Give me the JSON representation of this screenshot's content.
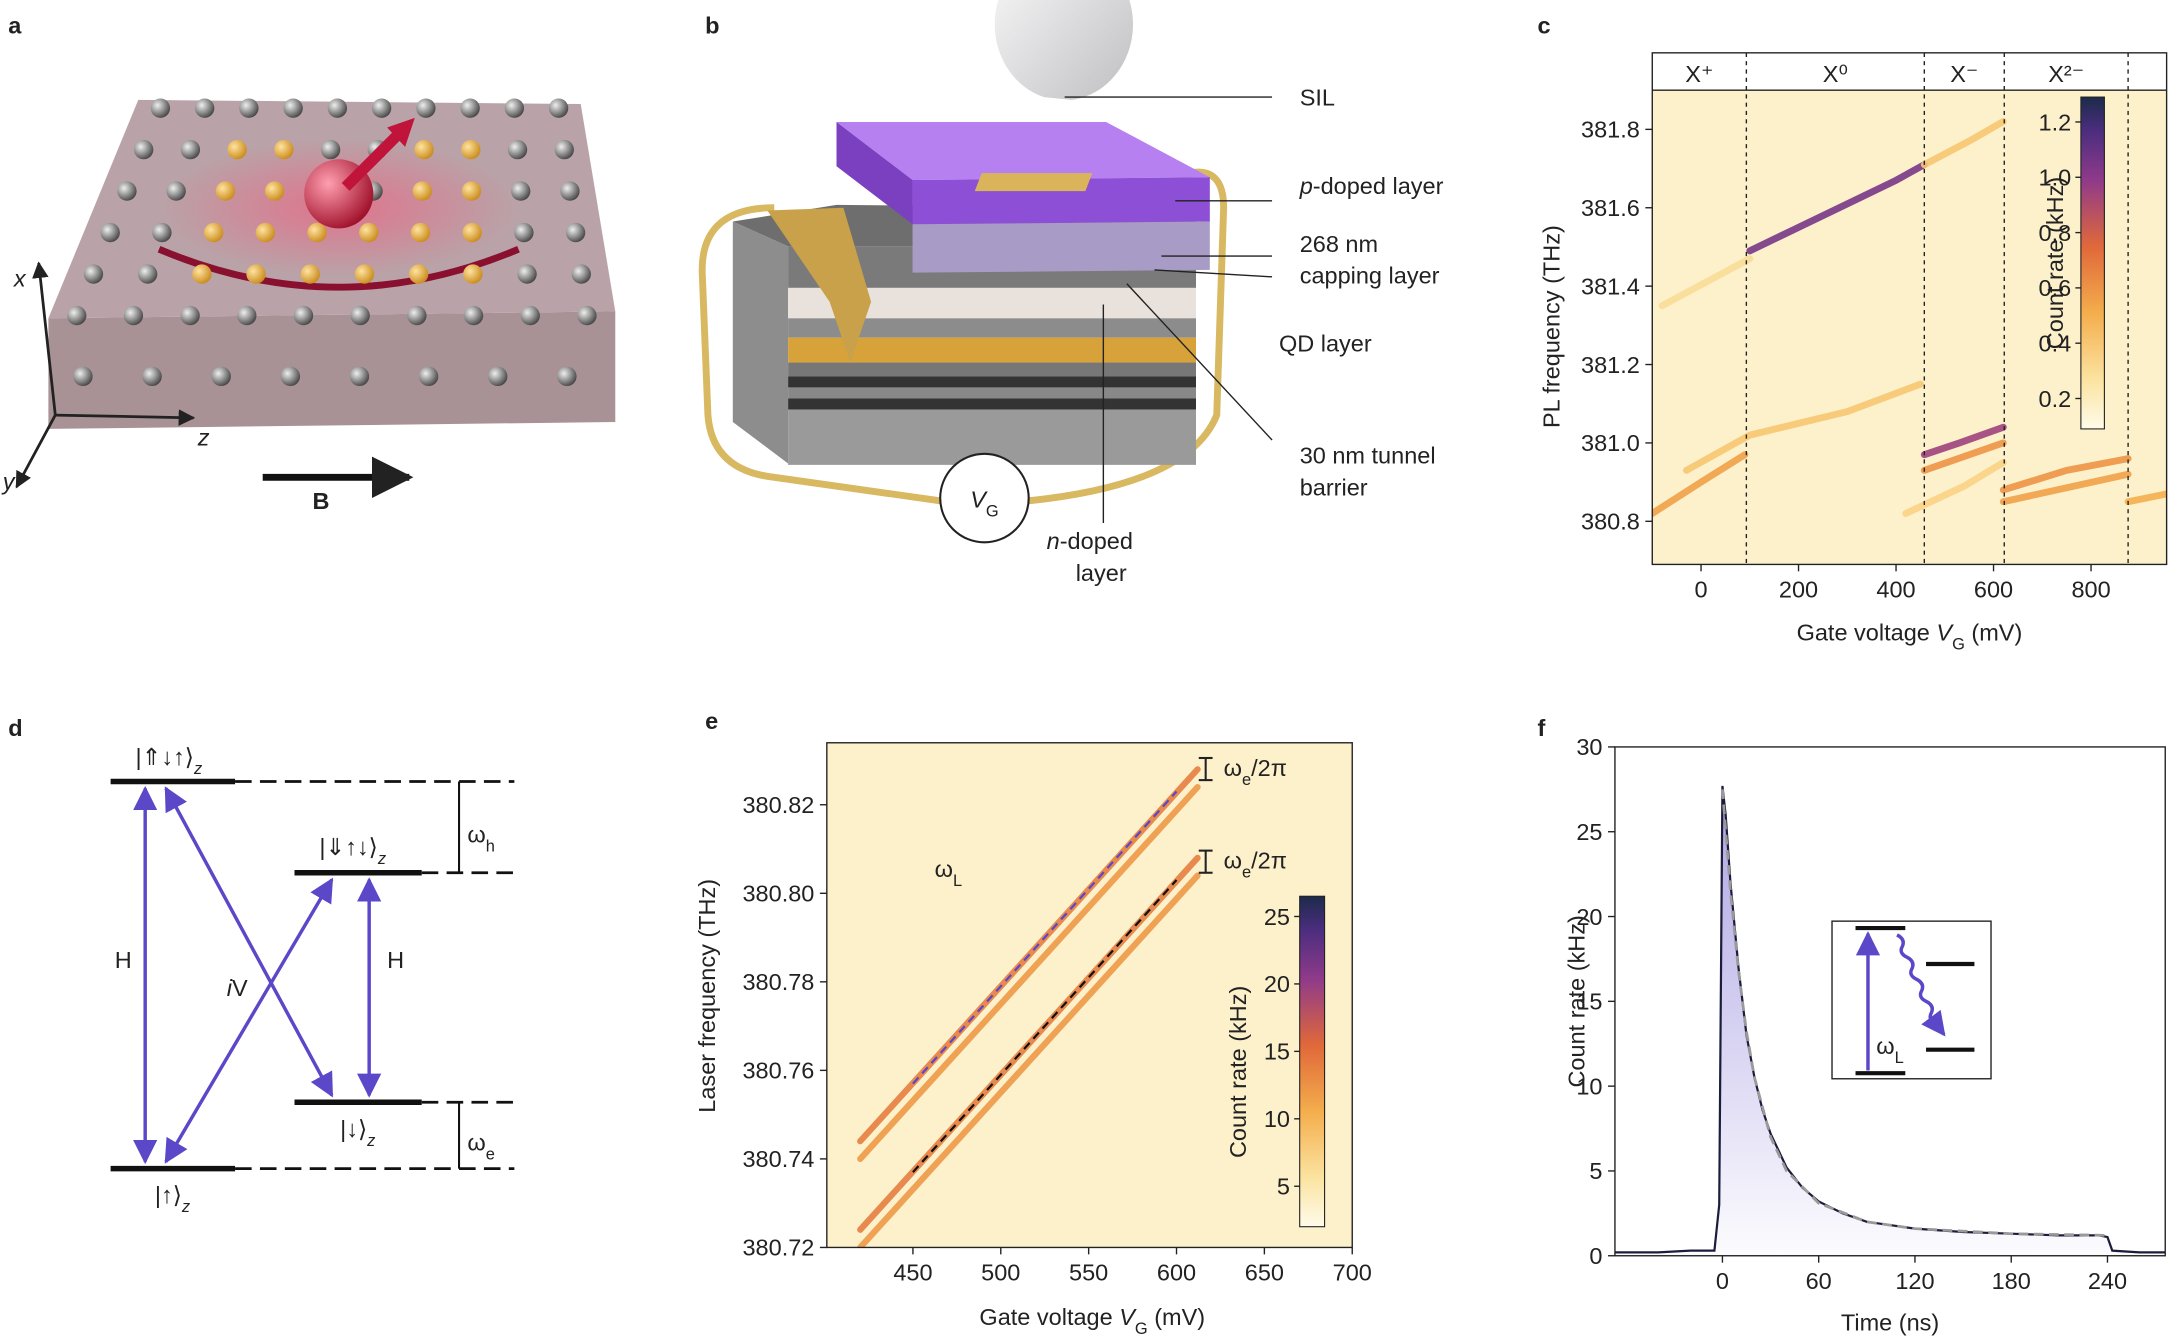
{
  "panel_labels": [
    "a",
    "b",
    "c",
    "d",
    "e",
    "f"
  ],
  "panel_a": {
    "axes": [
      "x",
      "z",
      "y"
    ],
    "field": "B"
  },
  "panel_b": {
    "labels": [
      "SIL",
      [
        "p",
        "-doped layer"
      ],
      "268 nm",
      "capping layer",
      "QD layer",
      "30 nm tunnel",
      "barrier",
      [
        "n",
        "-doped"
      ],
      "layer"
    ],
    "gate": [
      "V",
      "G"
    ]
  },
  "panel_d": {
    "states": [
      [
        "|⇑↓↑⟩",
        "z"
      ],
      [
        "|⇓↑↓⟩",
        "z"
      ],
      [
        "|↓⟩",
        "z"
      ],
      [
        "|↑⟩",
        "z"
      ]
    ],
    "transitions": [
      "H",
      [
        "i",
        "V"
      ],
      "H"
    ],
    "splittings": [
      [
        "ω",
        "h"
      ],
      [
        "ω",
        "e"
      ]
    ]
  },
  "chart_data": [
    {
      "type": "heatmap",
      "x_label": [
        "Gate voltage ",
        "V",
        "G",
        " (mV)"
      ],
      "y_label": "PL frequency (THz)",
      "xlim": [
        -100,
        955
      ],
      "ylim": [
        380.69,
        381.9
      ],
      "xticks": [
        0,
        200,
        400,
        600,
        800
      ],
      "yticks": [
        380.8,
        {
          "value": 381,
          "label": "381.0"
        },
        381.2,
        381.4,
        381.6,
        381.8
      ],
      "regions": [
        {
          "label": "X⁺",
          "start": -100,
          "end": 93
        },
        {
          "label": "X⁰",
          "start": 93,
          "end": 458
        },
        {
          "label": "X⁻",
          "start": 458,
          "end": 622
        },
        {
          "label": "X²⁻",
          "start": 622,
          "end": 876
        }
      ],
      "colorbar": {
        "label": "Count rate (kHz)",
        "clim": [
          0.09,
          1.29
        ],
        "ticks": [
          0.2,
          0.4,
          0.6,
          0.8,
          {
            "value": 1,
            "label": "1.0"
          },
          1.2
        ]
      },
      "series": [
        {
          "x": [
            -100,
            0,
            90
          ],
          "values": [
            380.82,
            380.9,
            380.97
          ],
          "intensity": 0.55
        },
        {
          "x": [
            -30,
            100,
            300,
            450
          ],
          "values": [
            380.93,
            381.02,
            381.08,
            381.15
          ],
          "intensity": 0.4
        },
        {
          "x": [
            -80,
            100
          ],
          "values": [
            381.35,
            381.47
          ],
          "intensity": 0.3
        },
        {
          "x": [
            100,
            200,
            300,
            400,
            458
          ],
          "values": [
            381.49,
            381.55,
            381.61,
            381.67,
            381.71
          ],
          "intensity": 1.05
        },
        {
          "x": [
            458,
            550,
            620
          ],
          "values": [
            381.71,
            381.77,
            381.82
          ],
          "intensity": 0.4
        },
        {
          "x": [
            420,
            540,
            620
          ],
          "values": [
            380.82,
            380.89,
            380.95
          ],
          "intensity": 0.35
        },
        {
          "x": [
            458,
            620
          ],
          "values": [
            380.93,
            381.0
          ],
          "intensity": 0.6
        },
        {
          "x": [
            458,
            530,
            620
          ],
          "values": [
            380.97,
            381.0,
            381.04
          ],
          "intensity": 0.95
        },
        {
          "x": [
            620,
            750,
            876
          ],
          "values": [
            380.88,
            380.93,
            380.96
          ],
          "intensity": 0.6
        },
        {
          "x": [
            620,
            876
          ],
          "values": [
            380.85,
            380.92
          ],
          "intensity": 0.55
        },
        {
          "x": [
            876,
            955
          ],
          "values": [
            380.85,
            380.87
          ],
          "intensity": 0.5
        }
      ]
    },
    {
      "type": "heatmap",
      "x_label": [
        "Gate voltage ",
        "V",
        "G",
        " (mV)"
      ],
      "y_label": "Laser frequency (THz)",
      "xlim": [
        401,
        700
      ],
      "ylim": [
        380.72,
        380.834
      ],
      "xticks": [
        450,
        500,
        550,
        600,
        650,
        700
      ],
      "yticks": [
        380.72,
        380.74,
        380.76,
        380.78,
        {
          "value": 380.8,
          "label": "380.80"
        },
        380.82
      ],
      "colorbar": {
        "label": "Count rate (kHz)",
        "clim": [
          2,
          26.5
        ],
        "ticks": [
          5,
          10,
          15,
          20,
          25
        ]
      },
      "series": [
        {
          "x": [
            420,
            612
          ],
          "values": [
            380.744,
            380.828
          ],
          "intensity": 14
        },
        {
          "x": [
            420,
            612
          ],
          "values": [
            380.74,
            380.824
          ],
          "intensity": 12
        },
        {
          "x": [
            420,
            612
          ],
          "values": [
            380.724,
            380.808
          ],
          "intensity": 14
        },
        {
          "x": [
            420,
            612
          ],
          "values": [
            380.72,
            380.804
          ],
          "intensity": 12
        }
      ],
      "guides": [
        {
          "color": "#5a48c9",
          "x": [
            450,
            600
          ],
          "values": [
            380.757,
            380.823
          ]
        },
        {
          "color": "#111111",
          "x": [
            450,
            600
          ],
          "values": [
            380.737,
            380.803
          ]
        }
      ],
      "annotations": [
        [
          "ω",
          "e",
          "/2π"
        ],
        [
          "ω",
          "e",
          "/2π"
        ]
      ],
      "inset_label": [
        "ω",
        "L"
      ]
    },
    {
      "type": "line",
      "x_label": "Time (ns)",
      "y_label": "Count rate (kHz)",
      "xlim": [
        -67,
        276
      ],
      "ylim": [
        0,
        30
      ],
      "xticks": [
        0,
        60,
        120,
        180,
        240
      ],
      "yticks": [
        0,
        5,
        10,
        15,
        20,
        25,
        30
      ],
      "series": [
        {
          "color": "#1c1c3c",
          "fill": true,
          "x": [
            -67,
            -40,
            -20,
            -5,
            -2,
            0,
            2,
            5,
            10,
            15,
            20,
            25,
            30,
            40,
            50,
            60,
            75,
            90,
            105,
            120,
            150,
            180,
            210,
            235,
            240,
            243,
            260,
            276
          ],
          "values": [
            0.2,
            0.2,
            0.3,
            0.3,
            3,
            27.7,
            26,
            22,
            17,
            13,
            10.5,
            8.6,
            7.2,
            5.2,
            4,
            3.2,
            2.5,
            2,
            1.8,
            1.6,
            1.4,
            1.3,
            1.2,
            1.2,
            1.1,
            0.3,
            0.2,
            0.2
          ]
        },
        {
          "color": "#9a9a9a",
          "dash": true,
          "x": [
            0,
            5,
            10,
            15,
            20,
            30,
            40,
            60,
            90,
            120,
            180,
            240
          ],
          "values": [
            27.5,
            21.5,
            16.8,
            13.2,
            10.5,
            7,
            5,
            3.1,
            2,
            1.6,
            1.3,
            1.2
          ]
        }
      ],
      "inset_label": [
        "ω",
        "L"
      ]
    }
  ]
}
